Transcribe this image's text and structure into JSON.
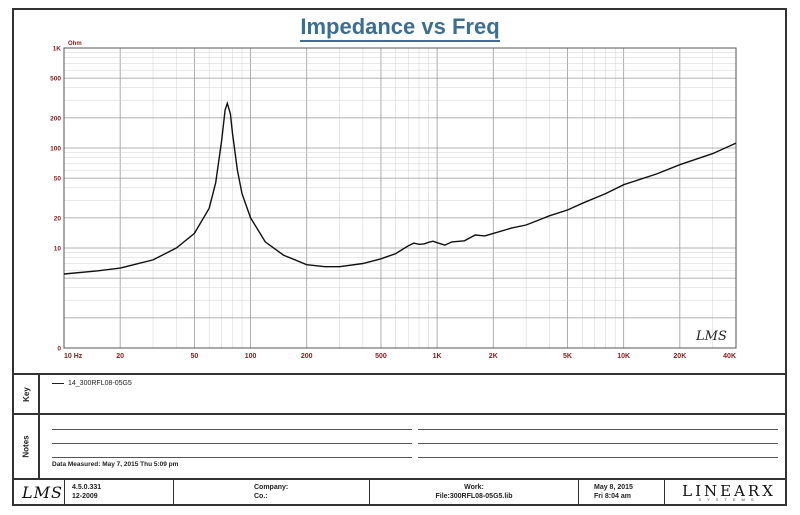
{
  "chart_data": {
    "type": "line",
    "title": "Impedance vs Freq",
    "ylabel": "Ohm",
    "x_scale": "log",
    "y_scale": "log",
    "xlim": [
      10,
      40000
    ],
    "ylim": [
      1,
      1000
    ],
    "x_tick_values": [
      10,
      20,
      50,
      100,
      200,
      500,
      1000,
      2000,
      5000,
      10000,
      20000,
      40000
    ],
    "x_tick_labels": [
      "10 Hz",
      "20",
      "50",
      "100",
      "200",
      "500",
      "1K",
      "2K",
      "5K",
      "10K",
      "20K",
      "40K"
    ],
    "y_tick_labels": [
      "1K",
      "500",
      "200",
      "100",
      "50",
      "20",
      "10",
      "0"
    ],
    "grid": true,
    "series": [
      {
        "name": "14_300RFL08-05G5",
        "x": [
          10,
          15,
          20,
          30,
          40,
          50,
          60,
          65,
          70,
          73,
          75,
          78,
          80,
          85,
          90,
          100,
          120,
          150,
          200,
          250,
          300,
          400,
          500,
          600,
          700,
          750,
          800,
          850,
          900,
          950,
          1000,
          1100,
          1200,
          1400,
          1600,
          1800,
          2000,
          2500,
          3000,
          3500,
          4000,
          5000,
          6000,
          8000,
          10000,
          15000,
          20000,
          30000,
          40000
        ],
        "y": [
          5.5,
          5.9,
          6.3,
          7.6,
          10,
          14,
          25,
          45,
          120,
          240,
          280,
          220,
          140,
          60,
          35,
          20,
          11.5,
          8.5,
          6.8,
          6.5,
          6.5,
          7.0,
          7.8,
          8.8,
          10.5,
          11.2,
          10.9,
          11,
          11.4,
          11.7,
          11.3,
          10.7,
          11.5,
          11.8,
          13.5,
          13.2,
          14,
          15.8,
          17,
          19,
          21,
          24,
          28,
          35,
          43,
          55,
          68,
          88,
          112
        ]
      }
    ]
  },
  "legend": {
    "entry": "14_300RFL08-05G5"
  },
  "panels": {
    "legend_label": "Key",
    "notes_label": "Notes",
    "date_measured": "Data Measured: May 7, 2015 Thu 5:09 pm"
  },
  "watermark": "LMS",
  "footer": {
    "logo": "LMS",
    "version": "4.5.0.331",
    "version_date": "12-2009",
    "company_label_1": "Company:",
    "company_label_2": "Co.:",
    "file_label": "Work:",
    "file_name": "File:300RFL08-05G5.lib",
    "print_date": "May 8, 2015",
    "print_time": "Fri 8:04 am",
    "brand": "LINEARX",
    "brand_sub": "SYSTEMS"
  },
  "colors": {
    "curve": "#111111",
    "grid_major": "#9a9a9a",
    "grid_minor": "#d0d0d0",
    "axis_text": "#8b1a1a",
    "title": "#3b6e93"
  }
}
